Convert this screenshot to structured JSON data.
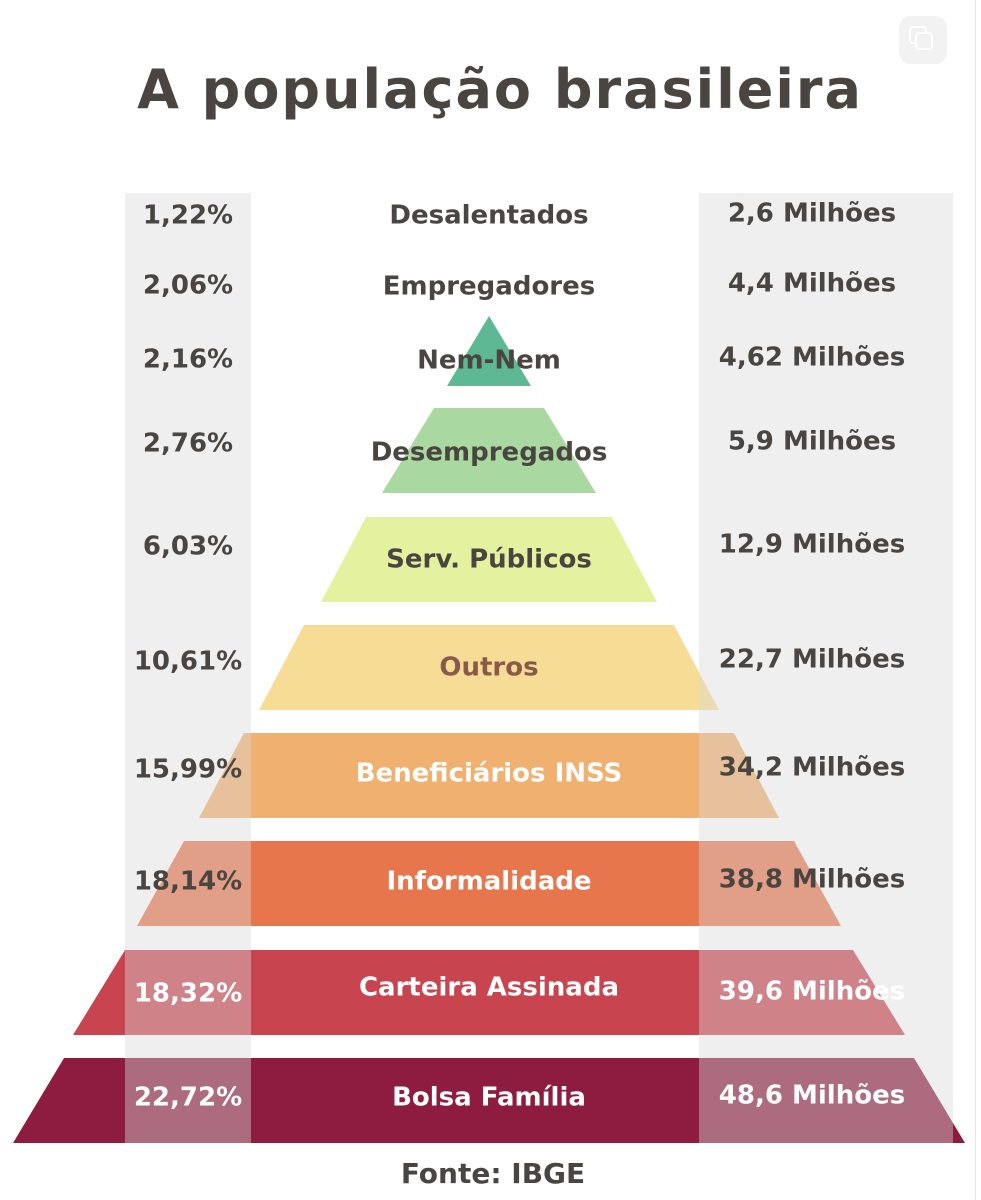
{
  "title": "A população brasileira",
  "source": "Fonte: IBGE",
  "copy_icon": "copy-icon",
  "chart_data": {
    "type": "pyramid",
    "title": "A população brasileira",
    "categories": [
      "Desalentados",
      "Empregadores",
      "Nem-Nem",
      "Desempregados",
      "Serv. Públicos",
      "Outros",
      "Beneficiários INSS",
      "Informalidade",
      "Carteira Assinada",
      "Bolsa Família"
    ],
    "percent_labels": [
      "1,22%",
      "2,06%",
      "2,16%",
      "2,76%",
      "6,03%",
      "10,61%",
      "15,99%",
      "18,14%",
      "18,32%",
      "22,72%"
    ],
    "value_labels": [
      "2,6 Milhões",
      "4,4 Milhões",
      "4,62 Milhões",
      "5,9 Milhões",
      "12,9 Milhões",
      "22,7 Milhões",
      "34,2 Milhões",
      "38,8 Milhões",
      "39,6 Milhões",
      "48,6 Milhões"
    ],
    "percent": [
      1.22,
      2.06,
      2.16,
      2.76,
      6.03,
      10.61,
      15.99,
      18.14,
      18.32,
      22.72
    ],
    "millions": [
      2.6,
      4.4,
      4.62,
      5.9,
      12.9,
      22.7,
      34.2,
      38.8,
      39.6,
      48.6
    ],
    "colors": [
      "#ffffff",
      "#ffffff",
      "#5eb894",
      "#a9d8a0",
      "#e4f2a0",
      "#f7dc95",
      "#f0b070",
      "#e7764c",
      "#c84550",
      "#8e1c40"
    ],
    "label_colors": [
      "#4a4541",
      "#4a4541",
      "#4a4541",
      "#4a4541",
      "#4a4541",
      "#8a5a48",
      "#ffffff",
      "#ffffff",
      "#ffffff",
      "#ffffff"
    ]
  }
}
